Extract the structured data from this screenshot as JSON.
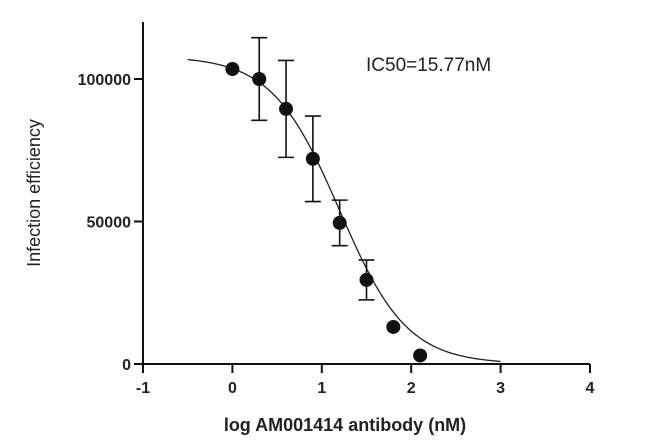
{
  "chart_data": {
    "type": "scatter",
    "title": "",
    "xlabel": "log AM001414 antibody (nM)",
    "ylabel": "Infection efficiency",
    "xlim": [
      -1,
      4
    ],
    "ylim": [
      0,
      120000
    ],
    "x_ticks": [
      -1,
      0,
      1,
      2,
      3,
      4
    ],
    "y_ticks": [
      0,
      50000,
      100000
    ],
    "grid": false,
    "annotation": "IC50=15.77nM",
    "points": [
      {
        "x": 0.0,
        "y": 103500,
        "err": 0
      },
      {
        "x": 0.3,
        "y": 100000,
        "err": 14500
      },
      {
        "x": 0.6,
        "y": 89500,
        "err": 17000
      },
      {
        "x": 0.9,
        "y": 72000,
        "err": 15000
      },
      {
        "x": 1.2,
        "y": 49500,
        "err": 8000
      },
      {
        "x": 1.5,
        "y": 29500,
        "err": 7000
      },
      {
        "x": 1.8,
        "y": 13000,
        "err": 0
      },
      {
        "x": 2.1,
        "y": 3000,
        "err": 0
      }
    ],
    "fit_curve": {
      "model": "four-parameter logistic",
      "top": 108000,
      "bottom": 0,
      "log_ic50": 1.198,
      "hill_slope": -1.15,
      "x_range": [
        -0.5,
        3.0
      ]
    }
  }
}
